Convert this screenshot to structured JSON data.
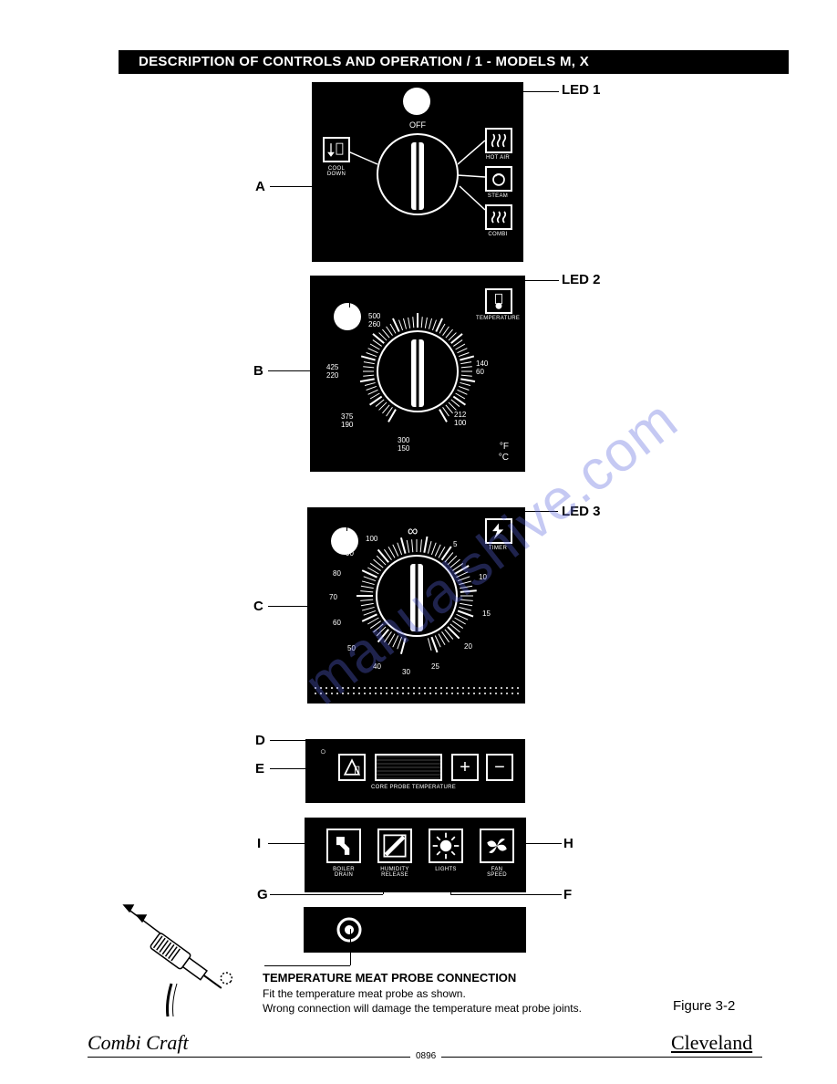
{
  "header": {
    "title": "DESCRIPTION OF CONTROLS AND OPERATION / 1 - MODELS M, X"
  },
  "leds": {
    "led1": "LED 1",
    "led2": "LED 2",
    "led3": "LED 3"
  },
  "sides": {
    "A": "A",
    "B": "B",
    "C": "C",
    "D": "D",
    "E": "E",
    "F": "F",
    "G": "G",
    "H": "H",
    "I": "I"
  },
  "panelA": {
    "off": "OFF",
    "cool_down": "COOL\nDOWN",
    "hot_air": "HOT AIR",
    "steam": "STEAM",
    "combi": "COMBI"
  },
  "panelB": {
    "icon": "TEMPERATURE",
    "unit_f": "°F",
    "unit_c": "°C",
    "ticks": [
      {
        "f": "500",
        "c": "260"
      },
      {
        "f": "425",
        "c": "220"
      },
      {
        "f": "375",
        "c": "190"
      },
      {
        "f": "300",
        "c": "150"
      },
      {
        "f": "212",
        "c": "100"
      },
      {
        "f": "140",
        "c": "60"
      }
    ]
  },
  "panelC": {
    "icon": "TIMER",
    "inf": "∞",
    "values": [
      "5",
      "10",
      "15",
      "20",
      "25",
      "30",
      "40",
      "50",
      "60",
      "70",
      "80",
      "90",
      "100"
    ]
  },
  "panelD": {
    "core": "CORE PROBE TEMPERATURE",
    "plus": "+",
    "minus": "−",
    "delta": "Δ",
    "circle": "○"
  },
  "panelE": {
    "boiler": "BOILER\nDRAIN",
    "humidity": "HUMIDITY\nRELEASE",
    "lights": "LIGHTS",
    "fan": "FAN\nSPEED"
  },
  "probe": {
    "title": "TEMPERATURE MEAT PROBE CONNECTION",
    "l1": "Fit the temperature meat probe as shown.",
    "l2": "Wrong connection will damage the temperature meat probe joints."
  },
  "figure": "Figure 3-2",
  "footer": {
    "left": "Combi Craft",
    "right": "Cleveland",
    "num": "0896"
  },
  "watermark": "manualshive.com",
  "colors": {
    "panel": "#000000",
    "fg": "#ffffff",
    "page": "#ffffff",
    "wm": "rgba(90,100,220,0.35)"
  }
}
